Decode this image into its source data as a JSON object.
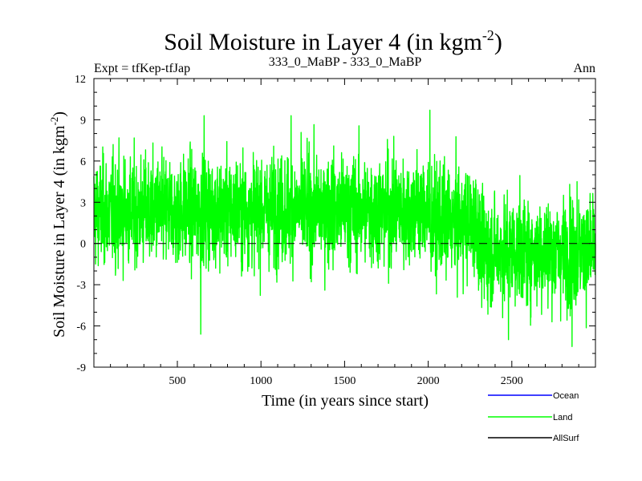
{
  "chart_data": {
    "type": "line",
    "title": "Soil Moisture in Layer 4 (in kgm",
    "title_sup": "-2",
    "title_close": ")",
    "subtitle_left": "Expt = tfKep-tfJap",
    "subtitle_center": "333_0_MaBP - 333_0_MaBP",
    "subtitle_right": "Ann",
    "ylabel": "Soil Moisture in Layer 4 (in kgm",
    "ylabel_sup": "-2",
    "ylabel_close": ")",
    "xlabel": "Time (in years since start)",
    "xlim": [
      1,
      3000
    ],
    "ylim": [
      -9,
      12
    ],
    "xticks": [
      500,
      1000,
      1500,
      2000,
      2500
    ],
    "xtick_labels": [
      "500",
      "1000",
      "1500",
      "2000",
      "2500"
    ],
    "yticks": [
      -9,
      -6,
      -3,
      0,
      3,
      6,
      9,
      12
    ],
    "ytick_labels": [
      "-9",
      "-6",
      "-3",
      "0",
      "3",
      "6",
      "9",
      "12"
    ],
    "zero_line": true,
    "colors": {
      "ocean": "#0000ff",
      "land": "#00ff00",
      "allsurf": "#000000"
    },
    "legend": [
      {
        "label": "Ocean",
        "color": "#0000ff"
      },
      {
        "label": "Land",
        "color": "#00ff00"
      },
      {
        "label": "AllSurf",
        "color": "#000000"
      }
    ],
    "series": [
      {
        "name": "Land",
        "color": "#00ff00",
        "note": "approx. 3000 annual values; mean level by period (data units)",
        "segments": [
          {
            "x_start": 1,
            "x_end": 500,
            "mean": 2.3,
            "spread": 2.6
          },
          {
            "x_start": 500,
            "x_end": 1000,
            "mean": 2.4,
            "spread": 2.6
          },
          {
            "x_start": 1000,
            "x_end": 1500,
            "mean": 2.5,
            "spread": 2.6
          },
          {
            "x_start": 1500,
            "x_end": 2000,
            "mean": 2.4,
            "spread": 2.7
          },
          {
            "x_start": 2000,
            "x_end": 2300,
            "mean": 1.5,
            "spread": 2.6
          },
          {
            "x_start": 2300,
            "x_end": 3000,
            "mean": -0.6,
            "spread": 2.6
          }
        ],
        "extremes": [
          {
            "x": 640,
            "y": -6.6
          },
          {
            "x": 660,
            "y": 9.3
          },
          {
            "x": 1180,
            "y": 9.3
          },
          {
            "x": 2010,
            "y": 9.7
          },
          {
            "x": 2480,
            "y": -7.0
          },
          {
            "x": 2860,
            "y": -7.5
          },
          {
            "x": 2890,
            "y": 4.5
          }
        ]
      }
    ]
  }
}
